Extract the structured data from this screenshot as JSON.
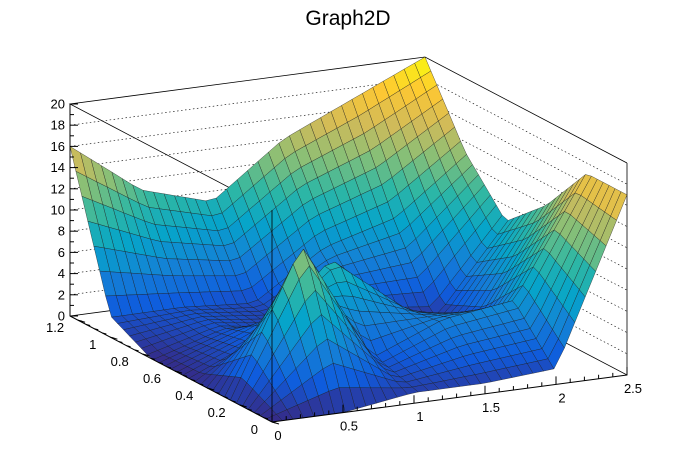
{
  "chart_data": {
    "type": "surface",
    "title": "Graph2D",
    "xlabel": "",
    "ylabel": "",
    "zlabel": "",
    "xlim": [
      0,
      2.5
    ],
    "ylim": [
      0,
      1.25
    ],
    "zlim": [
      0,
      20
    ],
    "x_ticks": [
      "0",
      "0.5",
      "1",
      "1.5",
      "2",
      "2.5"
    ],
    "y_ticks": [
      "0",
      "0.2",
      "0.4",
      "0.6",
      "0.8",
      "1",
      "1.2"
    ],
    "z_ticks": [
      "0",
      "2",
      "4",
      "6",
      "8",
      "10",
      "12",
      "14",
      "16",
      "18",
      "20"
    ],
    "colormap": [
      "#352a87",
      "#0f5cdd",
      "#1481d6",
      "#06a4ca",
      "#2eb7a4",
      "#87bf77",
      "#d1bb59",
      "#fec832",
      "#f9fb0e"
    ],
    "x_nodes": [
      0,
      0.5,
      1.0,
      1.5,
      2.0,
      2.5
    ],
    "y_nodes": [
      0,
      0.25,
      0.5,
      0.75,
      1.0,
      1.25
    ],
    "z_values": [
      [
        0,
        0,
        1,
        1,
        1.5,
        17
      ],
      [
        0,
        14,
        2,
        5,
        6,
        17
      ],
      [
        0,
        3,
        10,
        4,
        2,
        12
      ],
      [
        0,
        2,
        1,
        1.5,
        0.5,
        8.5
      ],
      [
        2,
        2,
        1.5,
        6,
        8,
        13
      ],
      [
        16,
        11,
        9,
        14,
        17,
        20
      ]
    ],
    "grid_n": 34
  }
}
